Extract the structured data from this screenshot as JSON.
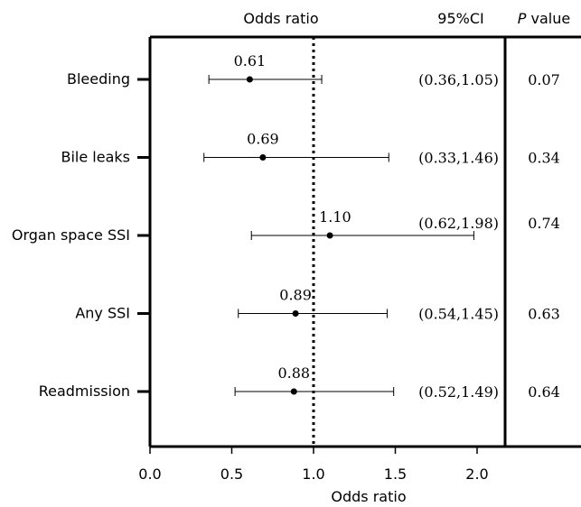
{
  "chart_data": {
    "type": "forest",
    "top_axis_label": "Odds ratio",
    "xlabel": "Odds ratio",
    "xlim": [
      0.0,
      2.0
    ],
    "xticks": [
      "0.0",
      "0.5",
      "1.0",
      "1.5",
      "2.0"
    ],
    "tick_values": [
      0.0,
      0.5,
      1.0,
      1.5,
      2.0
    ],
    "reference_line": 1.0,
    "columns": {
      "ci_header": "95%CI",
      "p_header_italic": "P",
      "p_header_rest": " value"
    },
    "rows": [
      {
        "label": "Bleeding",
        "or": 0.61,
        "or_text": "0.61",
        "lower": 0.36,
        "upper": 1.05,
        "ci_text": "(0.36,1.05)",
        "p_text": "0.07"
      },
      {
        "label": "Bile leaks",
        "or": 0.69,
        "or_text": "0.69",
        "lower": 0.33,
        "upper": 1.46,
        "ci_text": "(0.33,1.46)",
        "p_text": "0.34"
      },
      {
        "label": "Organ space SSI",
        "or": 1.1,
        "or_text": "1.10",
        "lower": 0.62,
        "upper": 1.98,
        "ci_text": "(0.62,1.98)",
        "p_text": "0.74"
      },
      {
        "label": "Any SSI",
        "or": 0.89,
        "or_text": "0.89",
        "lower": 0.54,
        "upper": 1.45,
        "ci_text": "(0.54,1.45)",
        "p_text": "0.63"
      },
      {
        "label": "Readmission",
        "or": 0.88,
        "or_text": "0.88",
        "lower": 0.52,
        "upper": 1.49,
        "ci_text": "(0.52,1.49)",
        "p_text": "0.64"
      }
    ]
  }
}
